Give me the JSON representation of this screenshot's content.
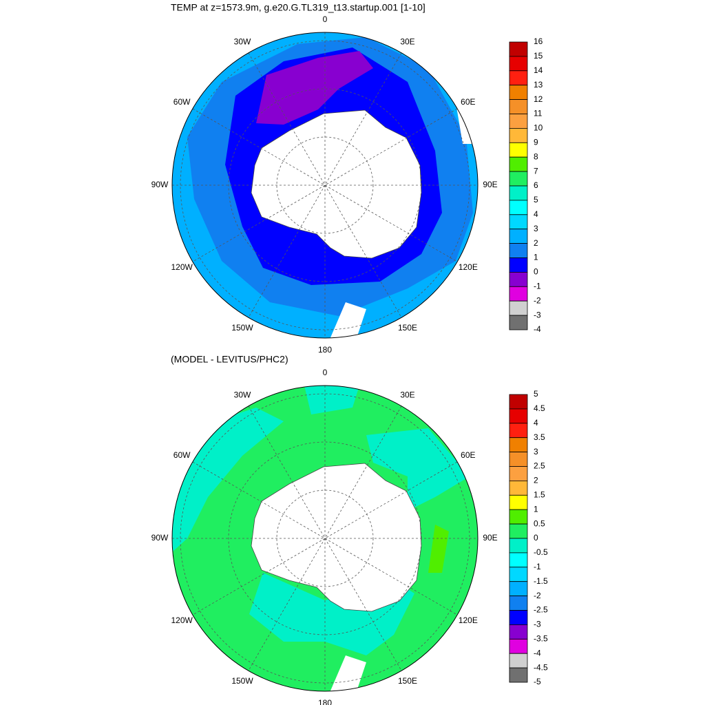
{
  "panels": [
    {
      "title": "TEMP at z=1573.9m, g.e20.G.TL319_t13.startup.001 [1-10]",
      "lon_labels": [
        "0",
        "30E",
        "60E",
        "90E",
        "120E",
        "150E",
        "180",
        "150W",
        "120W",
        "90W",
        "60W",
        "30W"
      ],
      "colorbar": {
        "levels": [
          16,
          15,
          14,
          13,
          12,
          11,
          10,
          9,
          8,
          7,
          6,
          5,
          4,
          3,
          2,
          1,
          0,
          -1,
          -2,
          -3,
          -4
        ],
        "colors": [
          "#c00000",
          "#e60000",
          "#ff2010",
          "#f08000",
          "#f59028",
          "#fca040",
          "#ffb838",
          "#ffff00",
          "#50ee00",
          "#20ee60",
          "#00f0c8",
          "#00ffff",
          "#00d8ff",
          "#00b0ff",
          "#1080f0",
          "#0000ff",
          "#8800d0",
          "#e000e0",
          "#d0d0d0",
          "#707070"
        ]
      }
    },
    {
      "title": "(MODEL - LEVITUS/PHC2)",
      "lon_labels": [
        "0",
        "30E",
        "60E",
        "90E",
        "120E",
        "150E",
        "180",
        "150W",
        "120W",
        "90W",
        "60W",
        "30W"
      ],
      "colorbar": {
        "levels": [
          5,
          4.5,
          4,
          3.5,
          3,
          2.5,
          2,
          1.5,
          1,
          0.5,
          0,
          -0.5,
          -1,
          -1.5,
          -2,
          -2.5,
          -3,
          -3.5,
          -4,
          -4.5,
          -5
        ],
        "colors": [
          "#c00000",
          "#e60000",
          "#ff2010",
          "#f08000",
          "#f59028",
          "#fca040",
          "#ffb838",
          "#ffff00",
          "#50ee00",
          "#20ee60",
          "#00f0c8",
          "#00ffff",
          "#00d8ff",
          "#00b0ff",
          "#1080f0",
          "#0000ff",
          "#8800d0",
          "#e000e0",
          "#d0d0d0",
          "#707070"
        ]
      }
    }
  ]
}
